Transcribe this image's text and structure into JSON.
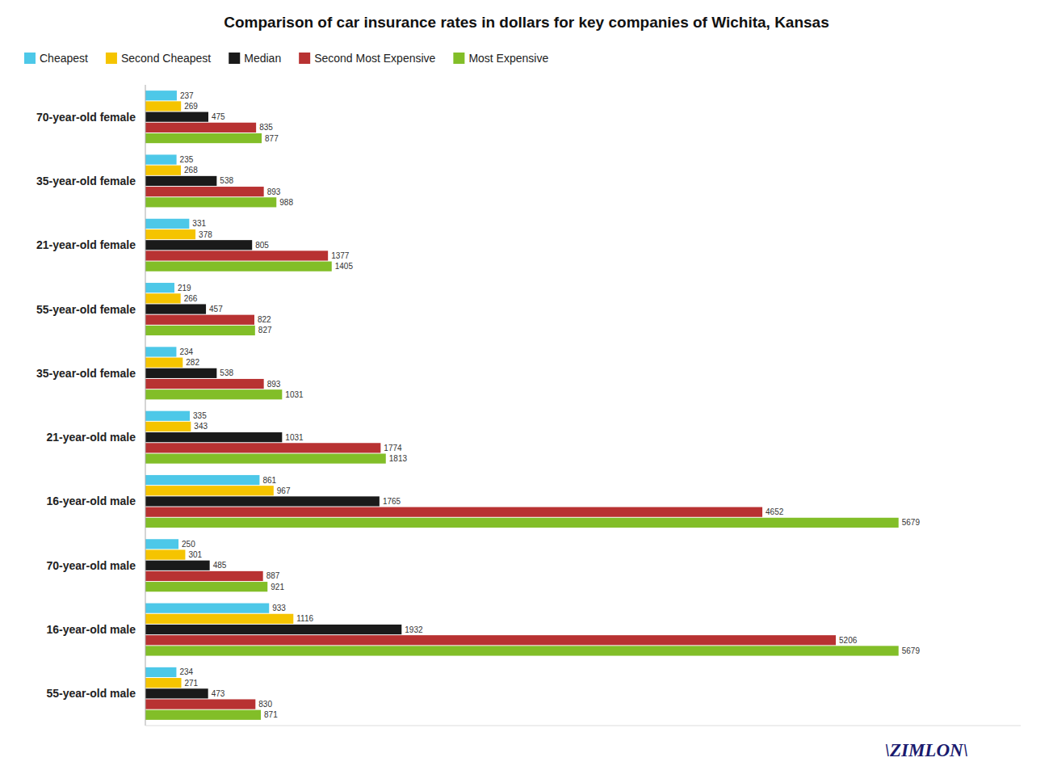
{
  "chart_data": {
    "type": "bar",
    "orientation": "horizontal",
    "title": "Comparison of car insurance rates in dollars for key companies of  Wichita, Kansas",
    "categories": [
      "70-year-old female",
      "35-year-old female",
      "21-year-old female",
      "55-year-old female",
      "35-year-old female",
      "21-year-old male",
      "16-year-old male",
      "70-year-old male",
      "16-year-old male",
      "55-year-old male"
    ],
    "series": [
      {
        "name": "Cheapest",
        "color": "#4DC8E8",
        "values": [
          237,
          235,
          331,
          219,
          234,
          335,
          861,
          250,
          933,
          234
        ]
      },
      {
        "name": "Second Cheapest",
        "color": "#F5C400",
        "values": [
          269,
          268,
          378,
          266,
          282,
          343,
          967,
          301,
          1116,
          271
        ]
      },
      {
        "name": "Median",
        "color": "#1A1A1A",
        "values": [
          475,
          538,
          805,
          457,
          538,
          1031,
          1765,
          485,
          1932,
          473
        ]
      },
      {
        "name": "Second Most Expensive",
        "color": "#B83232",
        "values": [
          835,
          893,
          1377,
          822,
          893,
          1774,
          4652,
          887,
          5206,
          830
        ]
      },
      {
        "name": "Most Expensive",
        "color": "#82BE28",
        "values": [
          877,
          988,
          1405,
          827,
          1031,
          1813,
          5679,
          921,
          5679,
          871
        ]
      }
    ],
    "xlim": [
      0,
      6600
    ],
    "tick_labels": "y",
    "data_labels": true,
    "legend": "top",
    "grid": false,
    "annotations": [
      "\\ZIMLON\\"
    ]
  }
}
